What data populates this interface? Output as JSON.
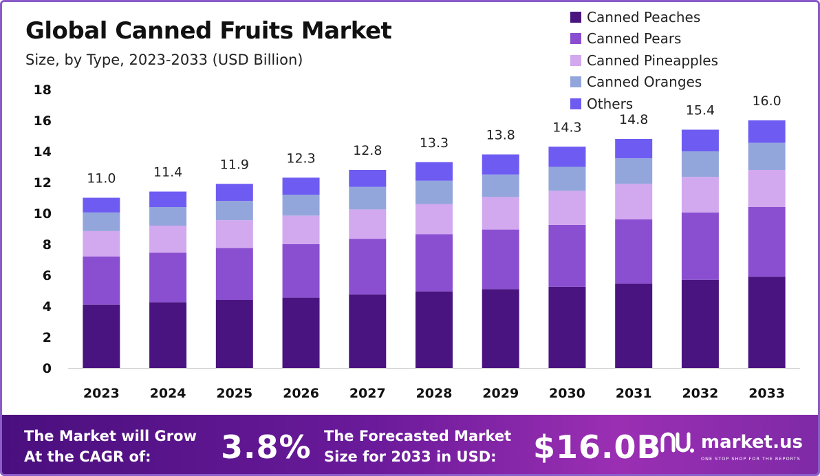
{
  "chart_data": {
    "type": "bar",
    "stacked": true,
    "title": "Global Canned Fruits Market",
    "subtitle": "Size, by Type, 2023-2033 (USD Billion)",
    "categories": [
      "2023",
      "2024",
      "2025",
      "2026",
      "2027",
      "2028",
      "2029",
      "2030",
      "2031",
      "2032",
      "2033"
    ],
    "series": [
      {
        "name": "Canned Peaches",
        "color": "#4a1480",
        "values": [
          4.1,
          4.25,
          4.4,
          4.55,
          4.75,
          4.95,
          5.1,
          5.25,
          5.45,
          5.7,
          5.9
        ]
      },
      {
        "name": "Canned Pears",
        "color": "#8a4fd0",
        "values": [
          3.1,
          3.2,
          3.35,
          3.45,
          3.6,
          3.7,
          3.85,
          4.0,
          4.15,
          4.35,
          4.5
        ]
      },
      {
        "name": "Canned Pineapples",
        "color": "#d2a8ef",
        "values": [
          1.65,
          1.75,
          1.8,
          1.85,
          1.9,
          1.95,
          2.1,
          2.2,
          2.3,
          2.3,
          2.4
        ]
      },
      {
        "name": "Canned Oranges",
        "color": "#93a6dc",
        "values": [
          1.2,
          1.2,
          1.25,
          1.35,
          1.45,
          1.5,
          1.45,
          1.55,
          1.65,
          1.65,
          1.75
        ]
      },
      {
        "name": "Others",
        "color": "#6e5cf2",
        "values": [
          0.95,
          1.0,
          1.1,
          1.1,
          1.1,
          1.2,
          1.3,
          1.3,
          1.25,
          1.4,
          1.45
        ]
      }
    ],
    "totals": [
      "11.0",
      "11.4",
      "11.9",
      "12.3",
      "12.8",
      "13.3",
      "13.8",
      "14.3",
      "14.8",
      "15.4",
      "16.0"
    ],
    "yticks": [
      "0",
      "2",
      "4",
      "6",
      "8",
      "10",
      "12",
      "14",
      "16",
      "18"
    ],
    "ylim": [
      0,
      18
    ],
    "grid": false,
    "legend_position": "top-right"
  },
  "footer": {
    "cagr_text_line1": "The Market will Grow",
    "cagr_text_line2": "At the CAGR of:",
    "cagr_value": "3.8%",
    "forecast_text_line1": "The Forecasted Market",
    "forecast_text_line2": "Size for 2033 in USD:",
    "forecast_value": "$16.0B",
    "brand_name": "market.us",
    "brand_tagline": "ONE STOP SHOP FOR THE REPORTS",
    "brand_icon": "market-us-logo-icon"
  }
}
